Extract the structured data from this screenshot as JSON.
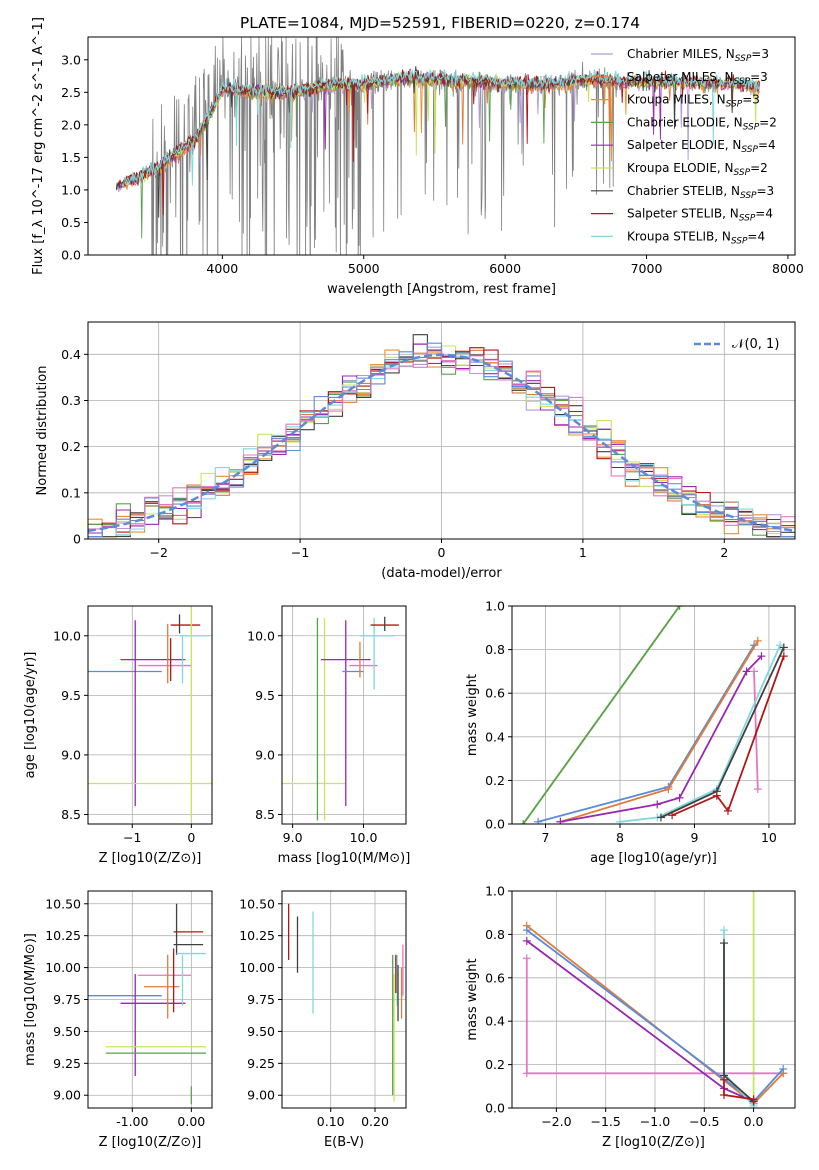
{
  "figure": {
    "title": "PLATE=1084, MJD=52591, FIBERID=0220, z=0.174"
  },
  "chart_data": [
    {
      "id": "spectrum",
      "type": "line",
      "xlabel": "wavelength [Angstrom, rest frame]",
      "ylabel": "Flux [f_λ 10^-17 erg cm^-2 s^-1 A^-1]",
      "xlim": [
        3050,
        8050
      ],
      "ylim": [
        0.0,
        3.35
      ],
      "xticks": [
        4000,
        5000,
        6000,
        7000,
        8000
      ],
      "yticks": [
        0.0,
        0.5,
        1.0,
        1.5,
        2.0,
        2.5,
        3.0
      ],
      "grid": false,
      "legend_position": "top-right",
      "data_series": {
        "name": "data",
        "color": "#808080",
        "x_range": [
          3500,
          6820
        ]
      },
      "model_range": [
        3250,
        7800
      ],
      "anchors_x": [
        3250,
        3400,
        3550,
        3700,
        3800,
        3900,
        4000,
        4200,
        4500,
        4800,
        5000,
        5300,
        5600,
        6000,
        6300,
        6600,
        6800,
        7200,
        7600,
        7800
      ],
      "anchors_y": [
        1.05,
        1.18,
        1.35,
        1.6,
        1.75,
        2.1,
        2.55,
        2.5,
        2.5,
        2.62,
        2.62,
        2.72,
        2.68,
        2.63,
        2.62,
        2.7,
        2.67,
        2.65,
        2.62,
        2.58
      ],
      "legend": [
        {
          "label": "Chabrier MILES",
          "sub": "SSP",
          "n": "=3",
          "color": "#b19cd9"
        },
        {
          "label": "Salpeter MILES",
          "sub": "SSP",
          "n": "=3",
          "color": "#e07b3a"
        },
        {
          "label": "Kroupa MILES",
          "sub": "SSP",
          "n": "=3",
          "color": "#f28e2b"
        },
        {
          "label": "Chabrier ELODIE",
          "sub": "SSP",
          "n": "=2",
          "color": "#59a14f"
        },
        {
          "label": "Salpeter ELODIE",
          "sub": "SSP",
          "n": "=4",
          "color": "#9b27b0"
        },
        {
          "label": "Kroupa ELODIE",
          "sub": "SSP",
          "n": "=2",
          "color": "#c7e65a"
        },
        {
          "label": "Chabrier STELIB",
          "sub": "SSP",
          "n": "=3",
          "color": "#404040"
        },
        {
          "label": "Salpeter STELIB",
          "sub": "SSP",
          "n": "=4",
          "color": "#b01818"
        },
        {
          "label": "Kroupa STELIB",
          "sub": "SSP",
          "n": "=4",
          "color": "#7fd8e0"
        }
      ]
    },
    {
      "id": "residuals",
      "type": "line",
      "xlabel": "(data-model)/error",
      "ylabel": "Normed distribution",
      "xlim": [
        -2.5,
        2.5
      ],
      "ylim": [
        0.0,
        0.47
      ],
      "xticks": [
        -2,
        -1,
        0,
        1,
        2
      ],
      "yticks": [
        0.0,
        0.1,
        0.2,
        0.3,
        0.4
      ],
      "grid": true,
      "legend_position": "top-right",
      "legend": [
        {
          "label": "𝒩(0, 1)",
          "color": "#5b8bd9"
        }
      ],
      "bin_width": 0.1,
      "bin_start": -2.5,
      "series_colors": [
        "#b19cd9",
        "#e07b3a",
        "#f28e2b",
        "#59a14f",
        "#9b27b0",
        "#c7e65a",
        "#404040",
        "#b01818",
        "#7fd8e0",
        "#5b8bd9",
        "#e377c2"
      ]
    },
    {
      "id": "age-vs-Z",
      "type": "scatter",
      "xlabel": "Z [log10(Z/Z⊙)]",
      "ylabel": "age [log10(age/yr)]",
      "xlim": [
        -1.75,
        0.35
      ],
      "ylim": [
        8.42,
        10.25
      ],
      "xticks": [
        -1,
        0
      ],
      "yticks": [
        8.5,
        9.0,
        9.5,
        10.0
      ],
      "grid": true,
      "errorbars": [
        {
          "x": -1.2,
          "y": 9.7,
          "xerr": 0.7,
          "yerr": 0.0,
          "color": "#5b8bd9"
        },
        {
          "x": -0.95,
          "y": 9.35,
          "xerr": 0.0,
          "yerr": 0.78,
          "color": "#9b27b0"
        },
        {
          "x": -0.65,
          "y": 9.8,
          "xerr": 0.55,
          "yerr": 0.0,
          "color": "#9b27b0"
        },
        {
          "x": -0.45,
          "y": 9.75,
          "xerr": 0.45,
          "yerr": 0.0,
          "color": "#e377c2"
        },
        {
          "x": -0.4,
          "y": 9.85,
          "xerr": 0.0,
          "yerr": 0.25,
          "color": "#e07b3a"
        },
        {
          "x": -0.35,
          "y": 9.8,
          "xerr": 0.0,
          "yerr": 0.18,
          "color": "#b01818"
        },
        {
          "x": -0.2,
          "y": 10.1,
          "xerr": 0.0,
          "yerr": 0.08,
          "color": "#404040"
        },
        {
          "x": -0.1,
          "y": 10.09,
          "xerr": 0.25,
          "yerr": 0.0,
          "color": "#b01818"
        },
        {
          "x": -0.15,
          "y": 9.8,
          "xerr": 0.0,
          "yerr": 0.2,
          "color": "#7fd8e0"
        },
        {
          "x": 0.05,
          "y": 10.0,
          "xerr": 0.25,
          "yerr": 0.0,
          "color": "#7fd8e0"
        },
        {
          "x": -0.6,
          "y": 8.76,
          "xerr": 1.2,
          "yerr": 0.0,
          "color": "#c7e65a"
        },
        {
          "x": 0.0,
          "y": 9.4,
          "xerr": 0.0,
          "yerr": 0.95,
          "color": "#c7e65a"
        }
      ]
    },
    {
      "id": "age-vs-mass",
      "type": "scatter",
      "xlabel": "mass [log10(M/M⊙)]",
      "ylabel": "",
      "xlim": [
        8.85,
        10.6
      ],
      "ylim": [
        8.42,
        10.25
      ],
      "xticks": [
        9,
        10
      ],
      "yticks": [
        8.5,
        9.0,
        9.5,
        10.0
      ],
      "grid": true,
      "errorbars": [
        {
          "x": 9.3,
          "y": 8.76,
          "xerr": 0.45,
          "yerr": 0.0,
          "color": "#c7e65a"
        },
        {
          "x": 9.35,
          "y": 9.3,
          "xerr": 0.0,
          "yerr": 0.85,
          "color": "#59a14f"
        },
        {
          "x": 9.45,
          "y": 9.3,
          "xerr": 0.0,
          "yerr": 0.85,
          "color": "#c7e65a"
        },
        {
          "x": 9.75,
          "y": 9.35,
          "xerr": 0.0,
          "yerr": 0.78,
          "color": "#9b27b0"
        },
        {
          "x": 9.75,
          "y": 9.8,
          "xerr": 0.35,
          "yerr": 0.0,
          "color": "#9b27b0"
        },
        {
          "x": 9.85,
          "y": 9.7,
          "xerr": 0.15,
          "yerr": 0.0,
          "color": "#5b8bd9"
        },
        {
          "x": 9.95,
          "y": 9.8,
          "xerr": 0.0,
          "yerr": 0.15,
          "color": "#e07b3a"
        },
        {
          "x": 10.0,
          "y": 9.75,
          "xerr": 0.2,
          "yerr": 0.0,
          "color": "#e377c2"
        },
        {
          "x": 10.15,
          "y": 9.85,
          "xerr": 0.0,
          "yerr": 0.3,
          "color": "#7fd8e0"
        },
        {
          "x": 10.2,
          "y": 10.0,
          "xerr": 0.25,
          "yerr": 0.0,
          "color": "#7fd8e0"
        },
        {
          "x": 10.3,
          "y": 10.09,
          "xerr": 0.2,
          "yerr": 0.0,
          "color": "#b01818"
        },
        {
          "x": 10.3,
          "y": 10.1,
          "xerr": 0.0,
          "yerr": 0.06,
          "color": "#404040"
        }
      ]
    },
    {
      "id": "massweight-vs-age",
      "type": "line",
      "xlabel": "age [log10(age/yr)]",
      "ylabel": "mass weight",
      "xlim": [
        6.55,
        10.35
      ],
      "ylim": [
        0.0,
        1.0
      ],
      "xticks": [
        7,
        8,
        9,
        10
      ],
      "yticks": [
        0.0,
        0.2,
        0.4,
        0.6,
        0.8,
        1.0
      ],
      "grid": true,
      "series": [
        {
          "color": "#c7e65a",
          "x": [
            6.7,
            8.8
          ],
          "y": [
            0.0,
            1.0
          ]
        },
        {
          "color": "#59a14f",
          "x": [
            6.7,
            8.8
          ],
          "y": [
            0.0,
            1.0
          ]
        },
        {
          "color": "#5b8bd9",
          "x": [
            6.9,
            8.65,
            9.8
          ],
          "y": [
            0.01,
            0.17,
            0.82
          ]
        },
        {
          "color": "#e07b3a",
          "x": [
            7.2,
            8.65,
            9.85
          ],
          "y": [
            0.01,
            0.16,
            0.84
          ]
        },
        {
          "color": "#9b27b0",
          "x": [
            7.2,
            8.5,
            8.8,
            9.7,
            9.9
          ],
          "y": [
            0.01,
            0.09,
            0.12,
            0.7,
            0.77
          ]
        },
        {
          "color": "#e377c2",
          "x": [
            9.8,
            9.85
          ],
          "y": [
            0.7,
            0.16
          ]
        },
        {
          "color": "#7fd8e0",
          "x": [
            8.0,
            8.5,
            9.3,
            10.15
          ],
          "y": [
            0.01,
            0.03,
            0.16,
            0.82
          ]
        },
        {
          "color": "#404040",
          "x": [
            8.55,
            9.3,
            10.2
          ],
          "y": [
            0.03,
            0.15,
            0.81
          ]
        },
        {
          "color": "#b01818",
          "x": [
            8.7,
            9.3,
            9.45,
            10.2
          ],
          "y": [
            0.04,
            0.13,
            0.06,
            0.77
          ]
        }
      ]
    },
    {
      "id": "mass-vs-Z",
      "type": "scatter",
      "xlabel": "Z [log10(Z/Z⊙)]",
      "ylabel": "mass [log10(M/M⊙)]",
      "xlim": [
        -1.75,
        0.35
      ],
      "ylim": [
        8.9,
        10.6
      ],
      "xticks": [
        -1,
        0
      ],
      "yticks": [
        9.0,
        9.25,
        9.5,
        9.75,
        10.0,
        10.25,
        10.5
      ],
      "grid": true,
      "errorbars": [
        {
          "x": -1.2,
          "y": 9.78,
          "xerr": 0.7,
          "yerr": 0.0,
          "color": "#5b8bd9"
        },
        {
          "x": -0.95,
          "y": 9.55,
          "xerr": 0.0,
          "yerr": 0.4,
          "color": "#9b27b0"
        },
        {
          "x": -0.65,
          "y": 9.72,
          "xerr": 0.55,
          "yerr": 0.0,
          "color": "#9b27b0"
        },
        {
          "x": -0.6,
          "y": 9.38,
          "xerr": 0.85,
          "yerr": 0.0,
          "color": "#c7e65a"
        },
        {
          "x": -0.6,
          "y": 9.33,
          "xerr": 0.85,
          "yerr": 0.0,
          "color": "#59a14f"
        },
        {
          "x": -0.45,
          "y": 9.94,
          "xerr": 0.45,
          "yerr": 0.0,
          "color": "#e377c2"
        },
        {
          "x": -0.4,
          "y": 9.85,
          "xerr": 0.0,
          "yerr": 0.25,
          "color": "#e07b3a"
        },
        {
          "x": -0.5,
          "y": 9.85,
          "xerr": 0.3,
          "yerr": 0.0,
          "color": "#e07b3a"
        },
        {
          "x": -0.3,
          "y": 9.9,
          "xerr": 0.0,
          "yerr": 0.25,
          "color": "#b01818"
        },
        {
          "x": -0.25,
          "y": 10.3,
          "xerr": 0.0,
          "yerr": 0.2,
          "color": "#404040"
        },
        {
          "x": -0.15,
          "y": 9.9,
          "xerr": 0.0,
          "yerr": 0.2,
          "color": "#7fd8e0"
        },
        {
          "x": -0.05,
          "y": 10.28,
          "xerr": 0.25,
          "yerr": 0.0,
          "color": "#b01818"
        },
        {
          "x": -0.05,
          "y": 10.18,
          "xerr": 0.25,
          "yerr": 0.0,
          "color": "#404040"
        },
        {
          "x": 0.0,
          "y": 10.11,
          "xerr": 0.25,
          "yerr": 0.0,
          "color": "#7fd8e0"
        },
        {
          "x": 0.0,
          "y": 9.0,
          "xerr": 0.0,
          "yerr": 0.07,
          "color": "#59a14f"
        }
      ]
    },
    {
      "id": "mass-vs-EBV",
      "type": "scatter",
      "xlabel": "E(B-V)",
      "ylabel": "",
      "xlim": [
        -0.01,
        0.27
      ],
      "ylim": [
        8.9,
        10.6
      ],
      "xticks": [
        0.1,
        0.2
      ],
      "yticks": [
        9.0,
        9.25,
        9.5,
        9.75,
        10.0,
        10.25,
        10.5
      ],
      "grid": true,
      "errorbars": [
        {
          "x": 0.005,
          "y": 10.28,
          "xerr": 0.0,
          "yerr": 0.22,
          "color": "#b01818"
        },
        {
          "x": 0.025,
          "y": 10.18,
          "xerr": 0.0,
          "yerr": 0.22,
          "color": "#404040"
        },
        {
          "x": 0.06,
          "y": 10.04,
          "xerr": 0.0,
          "yerr": 0.4,
          "color": "#7fd8e0"
        },
        {
          "x": 0.24,
          "y": 9.55,
          "xerr": 0.0,
          "yerr": 0.55,
          "color": "#59a14f"
        },
        {
          "x": 0.243,
          "y": 9.45,
          "xerr": 0.0,
          "yerr": 0.5,
          "color": "#c7e65a"
        },
        {
          "x": 0.247,
          "y": 9.95,
          "xerr": 0.0,
          "yerr": 0.15,
          "color": "#b01818"
        },
        {
          "x": 0.25,
          "y": 9.9,
          "xerr": 0.0,
          "yerr": 0.2,
          "color": "#7fd8e0"
        },
        {
          "x": 0.252,
          "y": 9.8,
          "xerr": 0.0,
          "yerr": 0.22,
          "color": "#404040"
        },
        {
          "x": 0.26,
          "y": 9.8,
          "xerr": 0.0,
          "yerr": 0.2,
          "color": "#e07b3a"
        },
        {
          "x": 0.263,
          "y": 9.98,
          "xerr": 0.0,
          "yerr": 0.2,
          "color": "#e377c2"
        }
      ]
    },
    {
      "id": "massweight-vs-Z",
      "type": "line",
      "xlabel": "Z [log10(Z/Z⊙)]",
      "ylabel": "mass weight",
      "xlim": [
        -2.45,
        0.42
      ],
      "ylim": [
        0.0,
        1.0
      ],
      "xticks": [
        -2.0,
        -1.5,
        -1.0,
        -0.5,
        0.0
      ],
      "yticks": [
        0.0,
        0.2,
        0.4,
        0.6,
        0.8,
        1.0
      ],
      "grid": true,
      "series": [
        {
          "color": "#c7e65a",
          "x": [
            0.0,
            0.0
          ],
          "y": [
            0.0,
            1.0
          ]
        },
        {
          "color": "#e377c2",
          "x": [
            -2.3,
            -2.3,
            0.3
          ],
          "y": [
            0.69,
            0.16,
            0.16
          ]
        },
        {
          "color": "#e07b3a",
          "x": [
            -2.3,
            0.0,
            0.3
          ],
          "y": [
            0.84,
            0.02,
            0.16
          ]
        },
        {
          "color": "#5b8bd9",
          "x": [
            -2.3,
            0.0,
            0.3
          ],
          "y": [
            0.82,
            0.03,
            0.18
          ]
        },
        {
          "color": "#9b27b0",
          "x": [
            -2.3,
            -0.3,
            0.0
          ],
          "y": [
            0.77,
            0.09,
            0.03
          ]
        },
        {
          "color": "#7fd8e0",
          "x": [
            -0.3,
            -0.3,
            0.0
          ],
          "y": [
            0.82,
            0.16,
            0.01
          ]
        },
        {
          "color": "#404040",
          "x": [
            -0.3,
            -0.3,
            0.0
          ],
          "y": [
            0.76,
            0.15,
            0.03
          ]
        },
        {
          "color": "#b01818",
          "x": [
            -0.3,
            -0.3,
            0.0
          ],
          "y": [
            0.13,
            0.06,
            0.04
          ]
        }
      ]
    }
  ]
}
